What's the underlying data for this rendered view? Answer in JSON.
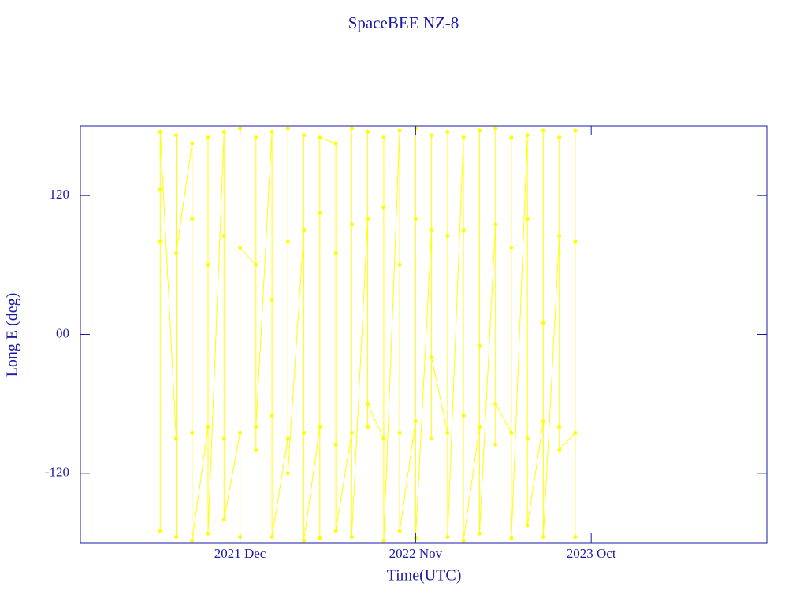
{
  "chart_data": {
    "type": "line",
    "title": "SpaceBEE NZ-8",
    "xlabel": "Time(UTC)",
    "ylabel": "Long E (deg)",
    "color": "#ffff00",
    "xlim": [
      "2021-02",
      "2024-09"
    ],
    "xticks": [
      {
        "value": "2021-12",
        "label": "2021 Dec"
      },
      {
        "value": "2022-11",
        "label": "2022 Nov"
      },
      {
        "value": "2023-10",
        "label": "2023 Oct"
      }
    ],
    "ylim": [
      -180,
      180
    ],
    "yticks": [
      -120,
      {
        "value": 0,
        "label": "00"
      },
      120
    ],
    "x": [
      "2021-07",
      "2021-07",
      "2021-07",
      "2021-07",
      "2021-08",
      "2021-08",
      "2021-08",
      "2021-08",
      "2021-09",
      "2021-09",
      "2021-09",
      "2021-09",
      "2021-10",
      "2021-10",
      "2021-10",
      "2021-10",
      "2021-11",
      "2021-11",
      "2021-11",
      "2021-11",
      "2021-12",
      "2021-12",
      "2021-12",
      "2021-12",
      "2022-01",
      "2022-01",
      "2022-01",
      "2022-01",
      "2022-02",
      "2022-02",
      "2022-02",
      "2022-02",
      "2022-03",
      "2022-03",
      "2022-03",
      "2022-03",
      "2022-04",
      "2022-04",
      "2022-04",
      "2022-04",
      "2022-05",
      "2022-05",
      "2022-05",
      "2022-05",
      "2022-06",
      "2022-06",
      "2022-06",
      "2022-06",
      "2022-07",
      "2022-07",
      "2022-07",
      "2022-07",
      "2022-08",
      "2022-08",
      "2022-08",
      "2022-08",
      "2022-09",
      "2022-09",
      "2022-09",
      "2022-09",
      "2022-10",
      "2022-10",
      "2022-10",
      "2022-10",
      "2022-11",
      "2022-11",
      "2022-11",
      "2022-11",
      "2022-12",
      "2022-12",
      "2022-12",
      "2022-12",
      "2023-01",
      "2023-01",
      "2023-01",
      "2023-01",
      "2023-02",
      "2023-02",
      "2023-02",
      "2023-02",
      "2023-03",
      "2023-03",
      "2023-03",
      "2023-03",
      "2023-04",
      "2023-04",
      "2023-04",
      "2023-04",
      "2023-05",
      "2023-05",
      "2023-05",
      "2023-05",
      "2023-06",
      "2023-06",
      "2023-06",
      "2023-06",
      "2023-07",
      "2023-07",
      "2023-07",
      "2023-07",
      "2023-08",
      "2023-08",
      "2023-08",
      "2023-08",
      "2023-09",
      "2023-09",
      "2023-09",
      "2023-09"
    ],
    "values": [
      125,
      80,
      -170,
      175,
      -90,
      172,
      -175,
      70,
      165,
      -85,
      100,
      -178,
      -80,
      170,
      60,
      -172,
      175,
      -90,
      85,
      -160,
      -85,
      178,
      -175,
      75,
      60,
      -100,
      170,
      -80,
      175,
      -70,
      30,
      -175,
      -90,
      178,
      80,
      -120,
      90,
      -85,
      172,
      -178,
      -80,
      105,
      -176,
      170,
      165,
      -95,
      70,
      -170,
      -85,
      178,
      95,
      -175,
      100,
      -80,
      175,
      -60,
      -90,
      170,
      110,
      -178,
      176,
      -85,
      60,
      -170,
      -75,
      178,
      100,
      -176,
      90,
      -90,
      172,
      -20,
      -85,
      175,
      85,
      -175,
      170,
      -70,
      90,
      -178,
      -80,
      176,
      -10,
      -172,
      95,
      -95,
      178,
      -60,
      -85,
      170,
      75,
      -176,
      172,
      -90,
      100,
      -165,
      -75,
      176,
      10,
      -175,
      85,
      -80,
      170,
      -100,
      -85,
      176,
      80,
      -175
    ]
  }
}
